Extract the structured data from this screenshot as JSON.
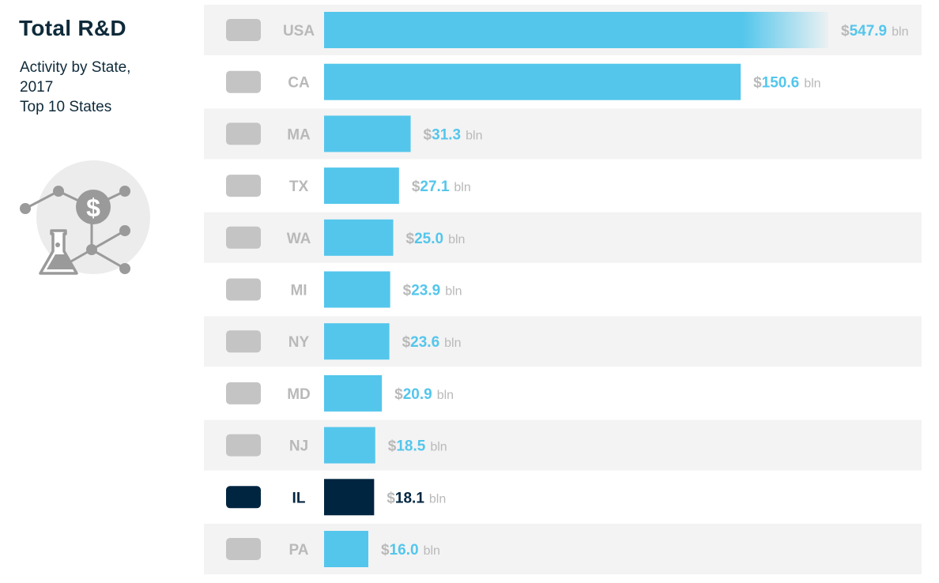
{
  "header": {
    "title": "Total R&D",
    "subtitle_lines": [
      "Activity by State,",
      "2017",
      "Top 10 States"
    ]
  },
  "icons": {
    "logo": "rd-money-flask-network-icon",
    "row_icon": "state-silhouette-icon"
  },
  "colors": {
    "bar": "#54c6ec",
    "highlight": "#002540",
    "label_gray": "#b9b9b9",
    "row_band": "#f3f3f3",
    "icon_gray": "#c4c4c4"
  },
  "chart_data": {
    "type": "bar",
    "orientation": "horizontal",
    "title": "Total R&D",
    "subtitle": "Activity by State, 2017 Top 10 States",
    "categories": [
      "USA",
      "CA",
      "MA",
      "TX",
      "WA",
      "MI",
      "NY",
      "MD",
      "NJ",
      "IL",
      "PA"
    ],
    "values": [
      547.9,
      150.6,
      31.3,
      27.1,
      25.0,
      23.9,
      23.6,
      20.9,
      18.5,
      18.1,
      16.0
    ],
    "value_labels": [
      "547.9",
      "150.6",
      "31.3",
      "27.1",
      "25.0",
      "23.9",
      "23.6",
      "20.9",
      "18.5",
      "18.1",
      "16.0"
    ],
    "value_prefix": "$",
    "value_suffix": "bln",
    "highlight": "IL",
    "xlim": [
      0,
      160
    ],
    "note": "USA bar is truncated (fades out) because it exceeds the axis range",
    "grid": false,
    "legend": "none"
  }
}
